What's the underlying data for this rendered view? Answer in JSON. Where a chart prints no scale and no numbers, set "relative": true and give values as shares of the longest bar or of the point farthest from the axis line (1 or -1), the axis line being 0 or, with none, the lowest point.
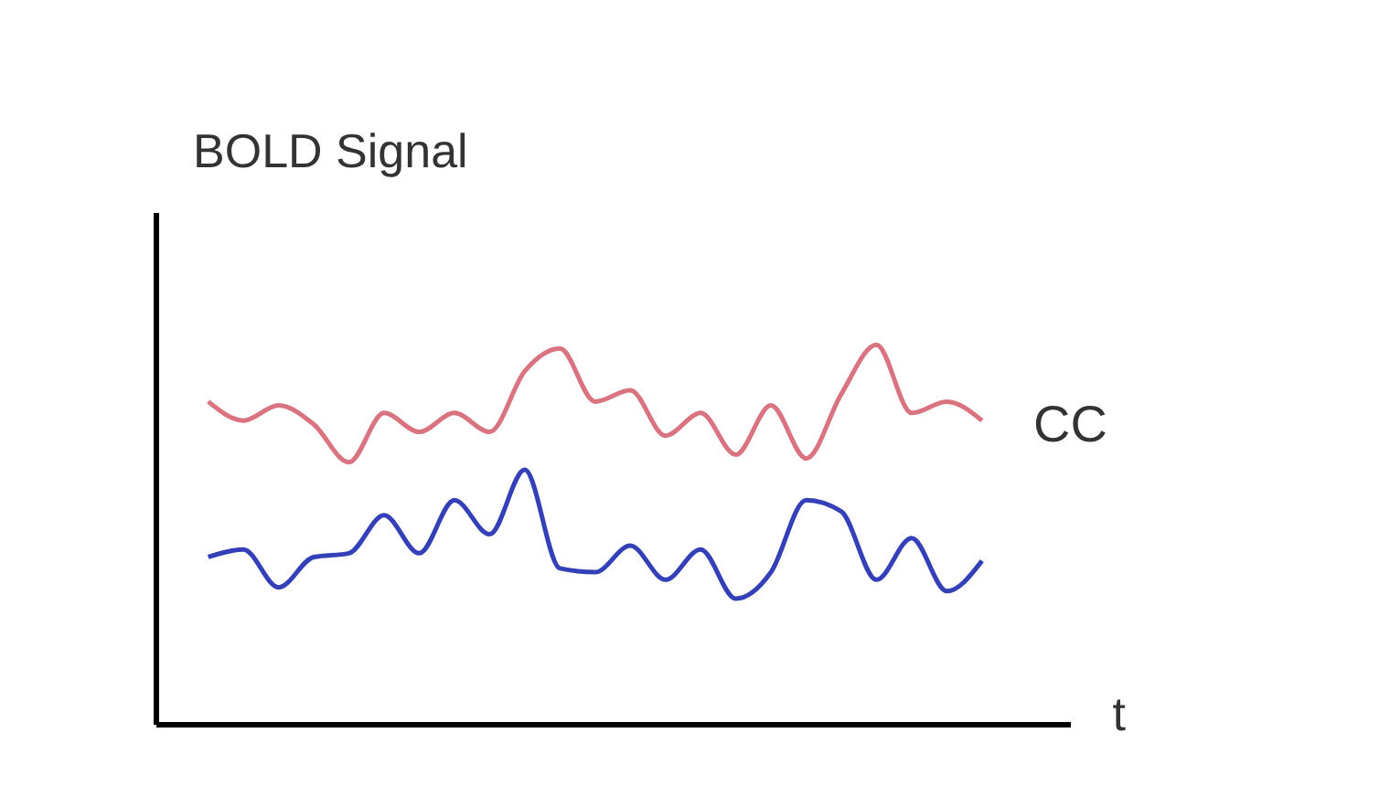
{
  "chart_data": {
    "type": "line",
    "relative": true,
    "xlabel": "t",
    "ylabel": "BOLD Signal",
    "annotations": [
      "CC"
    ],
    "categories": [
      null,
      null,
      null,
      null,
      null,
      null,
      null,
      null,
      null,
      null,
      null,
      null,
      null,
      null,
      null,
      null,
      null,
      null,
      null,
      null,
      null,
      null,
      null
    ],
    "series": [
      {
        "color": "#d9737f",
        "values": [
          0.85,
          0.8,
          0.84,
          0.79,
          0.69,
          0.82,
          0.77,
          0.82,
          0.77,
          0.93,
          0.99,
          0.85,
          0.88,
          0.76,
          0.82,
          0.71,
          0.84,
          0.7,
          0.87,
          1.0,
          0.82,
          0.85,
          0.8
        ]
      },
      {
        "color": "#3340b8",
        "values": [
          0.44,
          0.46,
          0.36,
          0.44,
          0.45,
          0.55,
          0.45,
          0.59,
          0.5,
          0.67,
          0.41,
          0.4,
          0.47,
          0.38,
          0.46,
          0.33,
          0.4,
          0.59,
          0.56,
          0.38,
          0.49,
          0.35,
          0.43
        ]
      }
    ]
  }
}
